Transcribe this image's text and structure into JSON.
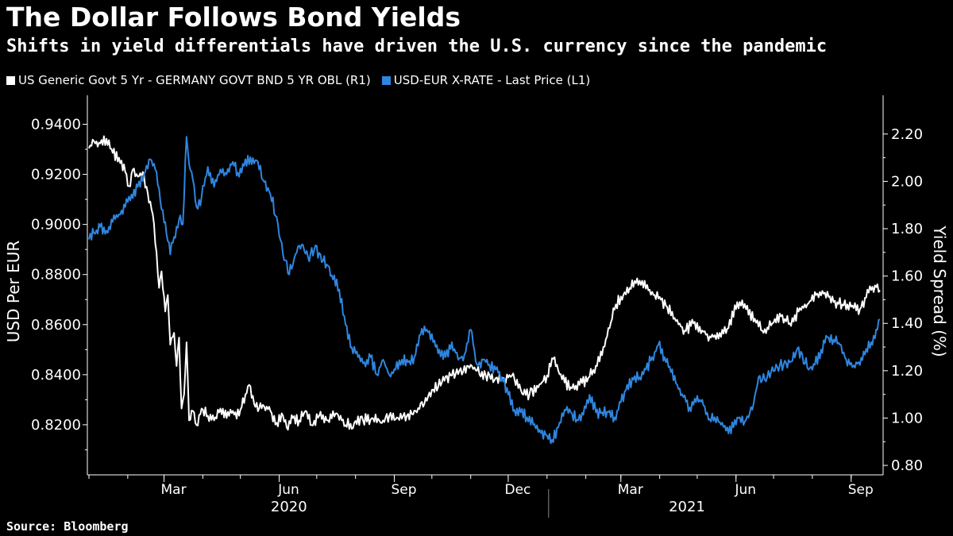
{
  "title": "The Dollar Follows Bond Yields",
  "subtitle": "Shifts in yield differentials have driven the U.S. currency since the pandemic",
  "source": "Source: Bloomberg",
  "colors": {
    "background": "#000000",
    "spread_line": "#ffffff",
    "fx_line": "#2e86e0",
    "axis": "#ffffff"
  },
  "chart_data": {
    "type": "line",
    "title": "The Dollar Follows Bond Yields",
    "subtitle": "Shifts in yield differentials have driven the U.S. currency since the pandemic",
    "legend_placement": "top-left",
    "grid": false,
    "x_range": [
      "2020-01-01",
      "2021-09-24"
    ],
    "x_ticks": [
      {
        "label": "Mar",
        "date": "2020-03-01"
      },
      {
        "label": "Jun",
        "date": "2020-06-01"
      },
      {
        "label": "Sep",
        "date": "2020-09-01"
      },
      {
        "label": "Dec",
        "date": "2020-12-01"
      },
      {
        "label": "Mar",
        "date": "2021-03-01"
      },
      {
        "label": "Jun",
        "date": "2021-06-01"
      },
      {
        "label": "Sep",
        "date": "2021-09-01"
      }
    ],
    "year_labels": [
      {
        "label": "2020",
        "date": "2020-07-01"
      },
      {
        "label": "2021",
        "date": "2021-05-15"
      }
    ],
    "year_divider_date": "2021-01-01",
    "left_axis": {
      "label": "USD Per EUR",
      "range": [
        0.8,
        0.9465
      ],
      "ticks": [
        "0.9400",
        "0.9200",
        "0.9000",
        "0.8800",
        "0.8600",
        "0.8400",
        "0.8200"
      ]
    },
    "right_axis": {
      "label": "Yield Spread (%)",
      "range": [
        0.76,
        2.31
      ],
      "ticks": [
        "2.20",
        "2.00",
        "1.80",
        "1.60",
        "1.40",
        "1.20",
        "1.00",
        "0.80"
      ]
    },
    "series": [
      {
        "name": "US Generic Govt 5 Yr - GERMANY GOVT BND 5 YR OBL (R1)",
        "axis": "right",
        "color": "#ffffff",
        "points": [
          [
            "2020-01-01",
            2.14
          ],
          [
            "2020-01-05",
            2.17
          ],
          [
            "2020-01-10",
            2.16
          ],
          [
            "2020-01-15",
            2.18
          ],
          [
            "2020-01-20",
            2.12
          ],
          [
            "2020-01-25",
            2.1
          ],
          [
            "2020-01-30",
            2.04
          ],
          [
            "2020-02-02",
            1.98
          ],
          [
            "2020-02-05",
            2.05
          ],
          [
            "2020-02-09",
            2.02
          ],
          [
            "2020-02-13",
            2.04
          ],
          [
            "2020-02-17",
            1.95
          ],
          [
            "2020-02-21",
            1.86
          ],
          [
            "2020-02-24",
            1.7
          ],
          [
            "2020-02-26",
            1.55
          ],
          [
            "2020-02-28",
            1.62
          ],
          [
            "2020-03-02",
            1.45
          ],
          [
            "2020-03-04",
            1.52
          ],
          [
            "2020-03-06",
            1.31
          ],
          [
            "2020-03-09",
            1.36
          ],
          [
            "2020-03-11",
            1.22
          ],
          [
            "2020-03-13",
            1.34
          ],
          [
            "2020-03-15",
            1.04
          ],
          [
            "2020-03-17",
            1.1
          ],
          [
            "2020-03-19",
            1.32
          ],
          [
            "2020-03-21",
            0.99
          ],
          [
            "2020-03-24",
            1.03
          ],
          [
            "2020-03-27",
            0.97
          ],
          [
            "2020-03-31",
            1.04
          ],
          [
            "2020-04-05",
            1.01
          ],
          [
            "2020-04-10",
            0.99
          ],
          [
            "2020-04-15",
            1.04
          ],
          [
            "2020-04-20",
            1.0
          ],
          [
            "2020-04-25",
            1.03
          ],
          [
            "2020-04-30",
            1.01
          ],
          [
            "2020-05-05",
            1.1
          ],
          [
            "2020-05-08",
            1.14
          ],
          [
            "2020-05-12",
            1.06
          ],
          [
            "2020-05-16",
            1.04
          ],
          [
            "2020-05-20",
            1.05
          ],
          [
            "2020-05-25",
            1.03
          ],
          [
            "2020-05-30",
            0.98
          ],
          [
            "2020-06-03",
            1.02
          ],
          [
            "2020-06-07",
            0.96
          ],
          [
            "2020-06-12",
            1.0
          ],
          [
            "2020-06-17",
            0.99
          ],
          [
            "2020-06-22",
            1.03
          ],
          [
            "2020-06-27",
            0.97
          ],
          [
            "2020-07-03",
            1.01
          ],
          [
            "2020-07-10",
            0.99
          ],
          [
            "2020-07-17",
            1.02
          ],
          [
            "2020-07-24",
            0.97
          ],
          [
            "2020-07-31",
            0.98
          ],
          [
            "2020-08-07",
            0.99
          ],
          [
            "2020-08-14",
            1.0
          ],
          [
            "2020-08-21",
            0.98
          ],
          [
            "2020-08-28",
            1.01
          ],
          [
            "2020-09-04",
            1.0
          ],
          [
            "2020-09-11",
            1.01
          ],
          [
            "2020-09-18",
            1.03
          ],
          [
            "2020-09-25",
            1.06
          ],
          [
            "2020-10-02",
            1.12
          ],
          [
            "2020-10-09",
            1.15
          ],
          [
            "2020-10-16",
            1.18
          ],
          [
            "2020-10-23",
            1.2
          ],
          [
            "2020-10-30",
            1.22
          ],
          [
            "2020-11-06",
            1.2
          ],
          [
            "2020-11-13",
            1.18
          ],
          [
            "2020-11-20",
            1.16
          ],
          [
            "2020-11-27",
            1.17
          ],
          [
            "2020-12-04",
            1.18
          ],
          [
            "2020-12-11",
            1.12
          ],
          [
            "2020-12-18",
            1.1
          ],
          [
            "2020-12-25",
            1.13
          ],
          [
            "2021-01-01",
            1.18
          ],
          [
            "2021-01-06",
            1.25
          ],
          [
            "2021-01-10",
            1.2
          ],
          [
            "2021-01-15",
            1.15
          ],
          [
            "2021-01-20",
            1.13
          ],
          [
            "2021-01-27",
            1.14
          ],
          [
            "2021-02-03",
            1.17
          ],
          [
            "2021-02-10",
            1.22
          ],
          [
            "2021-02-15",
            1.3
          ],
          [
            "2021-02-20",
            1.38
          ],
          [
            "2021-02-25",
            1.48
          ],
          [
            "2021-03-03",
            1.52
          ],
          [
            "2021-03-08",
            1.55
          ],
          [
            "2021-03-13",
            1.57
          ],
          [
            "2021-03-18",
            1.58
          ],
          [
            "2021-03-23",
            1.54
          ],
          [
            "2021-03-28",
            1.52
          ],
          [
            "2021-04-02",
            1.5
          ],
          [
            "2021-04-07",
            1.47
          ],
          [
            "2021-04-14",
            1.41
          ],
          [
            "2021-04-21",
            1.37
          ],
          [
            "2021-04-28",
            1.4
          ],
          [
            "2021-05-05",
            1.37
          ],
          [
            "2021-05-12",
            1.34
          ],
          [
            "2021-05-19",
            1.36
          ],
          [
            "2021-05-26",
            1.38
          ],
          [
            "2021-06-02",
            1.49
          ],
          [
            "2021-06-09",
            1.46
          ],
          [
            "2021-06-16",
            1.42
          ],
          [
            "2021-06-23",
            1.36
          ],
          [
            "2021-06-30",
            1.4
          ],
          [
            "2021-07-07",
            1.43
          ],
          [
            "2021-07-14",
            1.4
          ],
          [
            "2021-07-21",
            1.45
          ],
          [
            "2021-07-28",
            1.48
          ],
          [
            "2021-08-04",
            1.52
          ],
          [
            "2021-08-11",
            1.53
          ],
          [
            "2021-08-18",
            1.49
          ],
          [
            "2021-08-25",
            1.48
          ],
          [
            "2021-09-01",
            1.47
          ],
          [
            "2021-09-08",
            1.46
          ],
          [
            "2021-09-15",
            1.53
          ],
          [
            "2021-09-20",
            1.56
          ],
          [
            "2021-09-24",
            1.54
          ]
        ]
      },
      {
        "name": "USD-EUR X-RATE - Last Price (L1)",
        "axis": "left",
        "color": "#2e86e0",
        "points": [
          [
            "2020-01-01",
            0.894
          ],
          [
            "2020-01-05",
            0.8965
          ],
          [
            "2020-01-10",
            0.899
          ],
          [
            "2020-01-15",
            0.8975
          ],
          [
            "2020-01-20",
            0.901
          ],
          [
            "2020-01-25",
            0.904
          ],
          [
            "2020-01-30",
            0.907
          ],
          [
            "2020-02-04",
            0.912
          ],
          [
            "2020-02-09",
            0.915
          ],
          [
            "2020-02-14",
            0.92
          ],
          [
            "2020-02-19",
            0.926
          ],
          [
            "2020-02-24",
            0.921
          ],
          [
            "2020-02-28",
            0.906
          ],
          [
            "2020-03-03",
            0.896
          ],
          [
            "2020-03-06",
            0.888
          ],
          [
            "2020-03-09",
            0.895
          ],
          [
            "2020-03-13",
            0.902
          ],
          [
            "2020-03-16",
            0.9
          ],
          [
            "2020-03-19",
            0.935
          ],
          [
            "2020-03-21",
            0.924
          ],
          [
            "2020-03-24",
            0.918
          ],
          [
            "2020-03-27",
            0.907
          ],
          [
            "2020-03-31",
            0.911
          ],
          [
            "2020-04-05",
            0.923
          ],
          [
            "2020-04-10",
            0.915
          ],
          [
            "2020-04-15",
            0.922
          ],
          [
            "2020-04-20",
            0.92
          ],
          [
            "2020-04-25",
            0.925
          ],
          [
            "2020-04-30",
            0.919
          ],
          [
            "2020-05-05",
            0.926
          ],
          [
            "2020-05-10",
            0.924
          ],
          [
            "2020-05-15",
            0.925
          ],
          [
            "2020-05-20",
            0.917
          ],
          [
            "2020-05-25",
            0.912
          ],
          [
            "2020-05-30",
            0.903
          ],
          [
            "2020-06-04",
            0.888
          ],
          [
            "2020-06-09",
            0.88
          ],
          [
            "2020-06-14",
            0.888
          ],
          [
            "2020-06-19",
            0.892
          ],
          [
            "2020-06-24",
            0.887
          ],
          [
            "2020-06-29",
            0.89
          ],
          [
            "2020-07-04",
            0.888
          ],
          [
            "2020-07-09",
            0.884
          ],
          [
            "2020-07-14",
            0.878
          ],
          [
            "2020-07-19",
            0.874
          ],
          [
            "2020-07-24",
            0.86
          ],
          [
            "2020-07-29",
            0.851
          ],
          [
            "2020-08-03",
            0.847
          ],
          [
            "2020-08-08",
            0.845
          ],
          [
            "2020-08-13",
            0.847
          ],
          [
            "2020-08-18",
            0.84
          ],
          [
            "2020-08-23",
            0.846
          ],
          [
            "2020-08-28",
            0.84
          ],
          [
            "2020-09-02",
            0.842
          ],
          [
            "2020-09-07",
            0.846
          ],
          [
            "2020-09-12",
            0.845
          ],
          [
            "2020-09-17",
            0.847
          ],
          [
            "2020-09-22",
            0.856
          ],
          [
            "2020-09-27",
            0.858
          ],
          [
            "2020-10-02",
            0.853
          ],
          [
            "2020-10-07",
            0.85
          ],
          [
            "2020-10-12",
            0.847
          ],
          [
            "2020-10-17",
            0.853
          ],
          [
            "2020-10-22",
            0.846
          ],
          [
            "2020-10-27",
            0.848
          ],
          [
            "2020-11-01",
            0.858
          ],
          [
            "2020-11-06",
            0.844
          ],
          [
            "2020-11-11",
            0.846
          ],
          [
            "2020-11-16",
            0.844
          ],
          [
            "2020-11-21",
            0.842
          ],
          [
            "2020-11-26",
            0.839
          ],
          [
            "2020-12-01",
            0.832
          ],
          [
            "2020-12-06",
            0.826
          ],
          [
            "2020-12-11",
            0.825
          ],
          [
            "2020-12-16",
            0.823
          ],
          [
            "2020-12-21",
            0.82
          ],
          [
            "2020-12-26",
            0.818
          ],
          [
            "2020-12-31",
            0.816
          ],
          [
            "2021-01-05",
            0.814
          ],
          [
            "2021-01-10",
            0.819
          ],
          [
            "2021-01-15",
            0.826
          ],
          [
            "2021-01-20",
            0.825
          ],
          [
            "2021-01-25",
            0.822
          ],
          [
            "2021-01-30",
            0.824
          ],
          [
            "2021-02-04",
            0.832
          ],
          [
            "2021-02-09",
            0.825
          ],
          [
            "2021-02-14",
            0.825
          ],
          [
            "2021-02-19",
            0.825
          ],
          [
            "2021-02-24",
            0.823
          ],
          [
            "2021-03-01",
            0.829
          ],
          [
            "2021-03-06",
            0.836
          ],
          [
            "2021-03-11",
            0.838
          ],
          [
            "2021-03-16",
            0.839
          ],
          [
            "2021-03-21",
            0.842
          ],
          [
            "2021-03-26",
            0.847
          ],
          [
            "2021-03-31",
            0.852
          ],
          [
            "2021-04-05",
            0.847
          ],
          [
            "2021-04-10",
            0.841
          ],
          [
            "2021-04-15",
            0.836
          ],
          [
            "2021-04-20",
            0.831
          ],
          [
            "2021-04-25",
            0.827
          ],
          [
            "2021-04-30",
            0.829
          ],
          [
            "2021-05-05",
            0.83
          ],
          [
            "2021-05-10",
            0.822
          ],
          [
            "2021-05-15",
            0.823
          ],
          [
            "2021-05-20",
            0.82
          ],
          [
            "2021-05-25",
            0.819
          ],
          [
            "2021-05-30",
            0.819
          ],
          [
            "2021-06-04",
            0.823
          ],
          [
            "2021-06-09",
            0.822
          ],
          [
            "2021-06-14",
            0.826
          ],
          [
            "2021-06-19",
            0.839
          ],
          [
            "2021-06-24",
            0.838
          ],
          [
            "2021-06-29",
            0.841
          ],
          [
            "2021-07-04",
            0.843
          ],
          [
            "2021-07-09",
            0.844
          ],
          [
            "2021-07-14",
            0.845
          ],
          [
            "2021-07-19",
            0.849
          ],
          [
            "2021-07-24",
            0.848
          ],
          [
            "2021-07-29",
            0.842
          ],
          [
            "2021-08-03",
            0.844
          ],
          [
            "2021-08-08",
            0.85
          ],
          [
            "2021-08-13",
            0.855
          ],
          [
            "2021-08-18",
            0.854
          ],
          [
            "2021-08-23",
            0.852
          ],
          [
            "2021-08-28",
            0.846
          ],
          [
            "2021-09-02",
            0.843
          ],
          [
            "2021-09-07",
            0.845
          ],
          [
            "2021-09-12",
            0.848
          ],
          [
            "2021-09-17",
            0.853
          ],
          [
            "2021-09-22",
            0.858
          ],
          [
            "2021-09-24",
            0.862
          ]
        ]
      }
    ]
  }
}
